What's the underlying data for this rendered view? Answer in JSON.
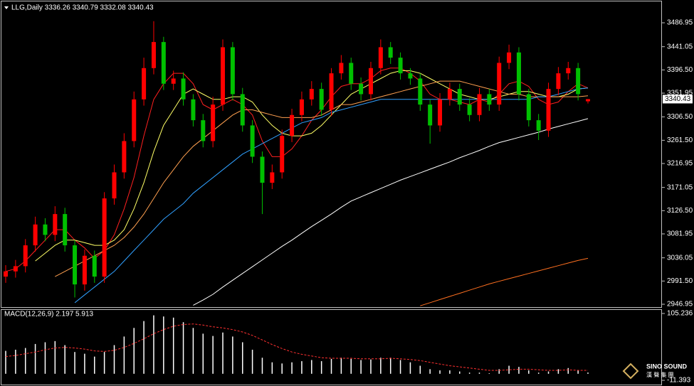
{
  "chart_data": {
    "type": "candlestick",
    "title": "LLG,Daily 3336.26 3340.79 3332.08 3340.43",
    "up_color": "#ff0000",
    "down_color": "#00c000",
    "ylim": [
      2941.5,
      3527.9
    ],
    "yticks": [
      3486.95,
      3441.05,
      {
        "value": 3396.5,
        "label": "3396.50"
      },
      3351.95,
      {
        "value": 3306.5,
        "label": "3306.50"
      },
      {
        "value": 3261.5,
        "label": "3261.50"
      },
      3216.95,
      3171.05,
      {
        "value": 3126.5,
        "label": "3126.50"
      },
      3081.95,
      3036.05,
      {
        "value": 2991.5,
        "label": "2991.50"
      },
      2946.95
    ],
    "open": [
      3000,
      3010,
      3020,
      3060,
      3100,
      3080,
      3120,
      3060,
      2985,
      3040,
      3000,
      3150,
      3200,
      3260,
      3340,
      3400,
      3450,
      3370,
      3380,
      3340,
      3300,
      3260,
      3330,
      3440,
      3350,
      3290,
      3230,
      3180,
      3200,
      3270,
      3310,
      3340,
      3360,
      3320,
      3390,
      3410,
      3370,
      3350,
      3400,
      3440,
      3420,
      3390,
      3380,
      3330,
      3290,
      3340,
      3360,
      3330,
      3310,
      3350,
      3330,
      3410,
      3430,
      3350,
      3300,
      3280,
      3360,
      3390,
      3400,
      3336.26
    ],
    "high": [
      3022,
      3032,
      3072,
      3115,
      3112,
      3135,
      3132,
      3070,
      3052,
      3050,
      3162,
      3215,
      3275,
      3355,
      3420,
      3490,
      3460,
      3395,
      3392,
      3350,
      3312,
      3345,
      3455,
      3450,
      3362,
      3300,
      3240,
      3215,
      3282,
      3322,
      3355,
      3375,
      3372,
      3400,
      3425,
      3420,
      3382,
      3412,
      3455,
      3450,
      3430,
      3400,
      3390,
      3340,
      3352,
      3372,
      3370,
      3342,
      3362,
      3360,
      3422,
      3445,
      3440,
      3360,
      3312,
      3372,
      3402,
      3412,
      3410,
      3340.79
    ],
    "low": [
      2988,
      2998,
      3008,
      3048,
      3068,
      3068,
      3048,
      2960,
      2973,
      2988,
      2988,
      3138,
      3188,
      3248,
      3328,
      3388,
      3358,
      3358,
      3328,
      3288,
      3248,
      3248,
      3318,
      3338,
      3278,
      3218,
      3120,
      3168,
      3188,
      3258,
      3298,
      3328,
      3308,
      3308,
      3378,
      3358,
      3338,
      3338,
      3388,
      3408,
      3378,
      3368,
      3318,
      3255,
      3278,
      3328,
      3318,
      3298,
      3298,
      3318,
      3318,
      3398,
      3338,
      3288,
      3262,
      3268,
      3348,
      3378,
      3338,
      3332.08
    ],
    "close": [
      3010,
      3020,
      3060,
      3100,
      3080,
      3120,
      3060,
      2985,
      3040,
      3000,
      3150,
      3200,
      3260,
      3340,
      3400,
      3450,
      3370,
      3380,
      3340,
      3300,
      3260,
      3330,
      3440,
      3350,
      3290,
      3230,
      3180,
      3200,
      3270,
      3310,
      3340,
      3360,
      3320,
      3390,
      3410,
      3370,
      3350,
      3400,
      3440,
      3420,
      3390,
      3380,
      3330,
      3290,
      3340,
      3360,
      3330,
      3310,
      3350,
      3330,
      3410,
      3430,
      3350,
      3300,
      3280,
      3360,
      3390,
      3400,
      3350,
      3340.43
    ],
    "series": [
      {
        "color": "#ff2020",
        "values": [
          3010,
          3015,
          3030,
          3050,
          3070,
          3090,
          3090,
          3070,
          3055,
          3035,
          3050,
          3080,
          3130,
          3190,
          3270,
          3340,
          3370,
          3390,
          3390,
          3370,
          3330,
          3320,
          3330,
          3340,
          3330,
          3310,
          3260,
          3230,
          3230,
          3245,
          3270,
          3300,
          3320,
          3345,
          3365,
          3370,
          3370,
          3380,
          3395,
          3400,
          3400,
          3390,
          3375,
          3350,
          3340,
          3340,
          3335,
          3330,
          3340,
          3335,
          3350,
          3370,
          3375,
          3365,
          3340,
          3330,
          3335,
          3355,
          3370,
          3362
        ]
      },
      {
        "color": "#ffff66",
        "values": [
          null,
          null,
          null,
          3030,
          3045,
          3060,
          3070,
          3070,
          3065,
          3060,
          3060,
          3070,
          3090,
          3130,
          3180,
          3240,
          3290,
          3320,
          3350,
          3360,
          3350,
          3340,
          3340,
          3345,
          3345,
          3335,
          3310,
          3290,
          3275,
          3270,
          3270,
          3275,
          3290,
          3310,
          3330,
          3350,
          3360,
          3370,
          3380,
          3390,
          3395,
          3395,
          3390,
          3380,
          3370,
          3360,
          3350,
          3345,
          3340,
          3340,
          3345,
          3350,
          3355,
          3355,
          3350,
          3345,
          3345,
          3350,
          3360,
          3362
        ]
      },
      {
        "color": "#ffa050",
        "values": [
          null,
          null,
          null,
          null,
          null,
          3000,
          3010,
          3020,
          3030,
          3040,
          3050,
          3060,
          3075,
          3095,
          3120,
          3150,
          3180,
          3205,
          3230,
          3250,
          3265,
          3280,
          3295,
          3310,
          3320,
          3320,
          3315,
          3310,
          3305,
          3305,
          3305,
          3305,
          3310,
          3320,
          3330,
          3330,
          3335,
          3340,
          3345,
          3350,
          3355,
          3360,
          3365,
          3370,
          3375,
          3375,
          3375,
          3370,
          3365,
          3360,
          3355,
          3350,
          3350,
          3345,
          3345,
          3345,
          3345,
          3345,
          3345,
          3347
        ]
      },
      {
        "color": "#30a0ff",
        "values": [
          null,
          null,
          null,
          null,
          null,
          null,
          null,
          2950,
          2965,
          2980,
          2995,
          3010,
          3030,
          3050,
          3070,
          3090,
          3110,
          3125,
          3140,
          3160,
          3175,
          3190,
          3205,
          3220,
          3235,
          3245,
          3255,
          3265,
          3275,
          3285,
          3295,
          3300,
          3305,
          3315,
          3320,
          3325,
          3330,
          3335,
          3340,
          3340,
          3340,
          3340,
          3340,
          3340,
          3340,
          3340,
          3340,
          3340,
          3340,
          3340,
          3340,
          3340,
          3340,
          3340,
          3345,
          3345,
          3350,
          3355,
          3360,
          3362
        ]
      },
      {
        "color": "#ffffff",
        "values": [
          null,
          null,
          null,
          null,
          null,
          null,
          null,
          null,
          null,
          null,
          null,
          null,
          null,
          null,
          null,
          null,
          null,
          null,
          null,
          2945,
          2955,
          2966,
          2980,
          2993,
          3006,
          3019,
          3032,
          3045,
          3058,
          3070,
          3083,
          3096,
          3108,
          3120,
          3133,
          3145,
          3153,
          3161,
          3169,
          3177,
          3185,
          3192,
          3199,
          3206,
          3213,
          3220,
          3228,
          3235,
          3242,
          3250,
          3257,
          3262,
          3267,
          3272,
          3277,
          3283,
          3288,
          3293,
          3298,
          3303
        ]
      },
      {
        "color": "#ff7020",
        "values": [
          null,
          null,
          null,
          null,
          null,
          null,
          null,
          null,
          null,
          null,
          null,
          null,
          null,
          null,
          null,
          null,
          null,
          null,
          null,
          null,
          null,
          null,
          null,
          null,
          null,
          null,
          null,
          null,
          null,
          null,
          null,
          null,
          null,
          null,
          null,
          null,
          null,
          null,
          null,
          null,
          null,
          null,
          2944,
          2950,
          2956,
          2962,
          2968,
          2974,
          2980,
          2986,
          2991,
          2996,
          3001,
          3006,
          3011,
          3016,
          3021,
          3026,
          3031,
          3035
        ]
      }
    ],
    "macd": {
      "title": "MACD(12,26,9) 2.197 5.913",
      "ylim": [
        -17.6,
        111.4
      ],
      "yticks": [
        105.236,
        -11.393
      ],
      "histogram_color": "#ffffff",
      "signal_color": "#ff3030",
      "histogram": [
        40,
        42,
        45,
        52,
        55,
        57,
        50,
        38,
        35,
        30,
        38,
        50,
        65,
        80,
        92,
        102,
        100,
        98,
        90,
        80,
        70,
        66,
        72,
        65,
        55,
        42,
        28,
        20,
        18,
        20,
        22,
        24,
        22,
        26,
        28,
        26,
        24,
        25,
        28,
        28,
        24,
        20,
        14,
        8,
        6,
        6,
        4,
        2,
        2,
        1,
        8,
        14,
        12,
        6,
        2,
        4,
        8,
        10,
        6,
        2.197
      ],
      "signal": [
        30,
        32,
        35,
        38,
        42,
        45,
        46,
        45,
        43,
        40,
        39,
        41,
        46,
        53,
        61,
        70,
        77,
        83,
        86,
        87,
        85,
        82,
        80,
        77,
        73,
        67,
        59,
        51,
        44,
        38,
        34,
        31,
        28,
        27,
        27,
        27,
        26,
        26,
        26,
        27,
        26,
        25,
        23,
        20,
        17,
        14,
        12,
        10,
        8,
        6,
        6,
        7,
        8,
        8,
        7,
        6,
        6,
        7,
        6,
        5.913
      ]
    },
    "logo_text": "SINO SOUND",
    "logo_subtext": "漢 聲 集 團"
  }
}
